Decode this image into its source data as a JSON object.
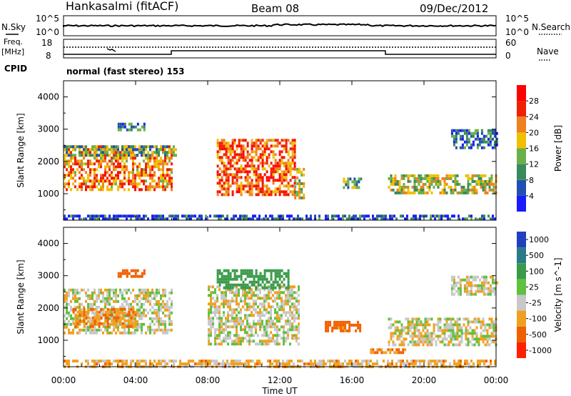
{
  "header": {
    "station": "Hankasalmi (fitACF)",
    "beam": "Beam 08",
    "date": "09/Dec/2012"
  },
  "strip_nsky": {
    "left_label": "N.Sky",
    "right_label": "N.Search",
    "left_ticks": [
      "10^5",
      "10^0"
    ],
    "right_ticks": [
      "10^5",
      "10^0"
    ]
  },
  "strip_freq": {
    "left_label_top": "Freq.",
    "left_label_bottom": "[MHz]",
    "right_label": "Nave",
    "left_ticks": [
      "18",
      "8"
    ],
    "right_ticks": [
      "60",
      "0"
    ]
  },
  "cpid": {
    "label": "CPID",
    "value": "normal (fast stereo) 153"
  },
  "x_axis": {
    "label": "Time UT",
    "tick_labels": [
      "00:00",
      "04:00",
      "08:00",
      "12:00",
      "16:00",
      "20:00",
      "00:00"
    ]
  },
  "chart_data": [
    {
      "type": "heatmap",
      "title": "",
      "xlabel": "Time UT",
      "ylabel": "Slant Range [km]",
      "x_range_hours": [
        0,
        24
      ],
      "ylim": [
        180,
        4500
      ],
      "y_ticks": [
        1000,
        2000,
        3000,
        4000
      ],
      "colorbar": {
        "label": "Power [dB]",
        "ticks": [
          "4",
          "8",
          "12",
          "16",
          "20",
          "24",
          "28"
        ],
        "colors": [
          "#1a1aff",
          "#2050b0",
          "#3a8a5a",
          "#6ab04a",
          "#f0c000",
          "#f08020",
          "#f02000",
          "#ff0000"
        ]
      },
      "regions": [
        {
          "t_start": 0.0,
          "t_end": 6.0,
          "r_min": 1100,
          "r_max": 2500,
          "power_db": 24
        },
        {
          "t_start": 0.0,
          "t_end": 6.2,
          "r_min": 2200,
          "r_max": 2500,
          "power_db": 14
        },
        {
          "t_start": 3.0,
          "t_end": 4.5,
          "r_min": 2950,
          "r_max": 3200,
          "power_db": 10
        },
        {
          "t_start": 8.5,
          "t_end": 12.8,
          "r_min": 1000,
          "r_max": 2700,
          "power_db": 26
        },
        {
          "t_start": 12.8,
          "t_end": 13.3,
          "r_min": 900,
          "r_max": 1800,
          "power_db": 18
        },
        {
          "t_start": 15.5,
          "t_end": 16.5,
          "r_min": 1200,
          "r_max": 1500,
          "power_db": 14
        },
        {
          "t_start": 18.0,
          "t_end": 24.0,
          "r_min": 1000,
          "r_max": 1600,
          "power_db": 18
        },
        {
          "t_start": 21.5,
          "t_end": 24.0,
          "r_min": 2400,
          "r_max": 3000,
          "power_db": 10
        },
        {
          "t_start": 0.0,
          "t_end": 24.0,
          "r_min": 180,
          "r_max": 350,
          "power_db": 8
        }
      ]
    },
    {
      "type": "heatmap",
      "title": "",
      "xlabel": "Time UT",
      "ylabel": "Slant Range [km]",
      "x_range_hours": [
        0,
        24
      ],
      "ylim": [
        180,
        4500
      ],
      "y_ticks": [
        1000,
        2000,
        3000,
        4000
      ],
      "colorbar": {
        "label": "Velocity [m s^-1]",
        "ticks": [
          "1000",
          "500",
          "100",
          "25",
          "-25",
          "-100",
          "-500",
          "-1000"
        ],
        "colors": [
          "#2040c0",
          "#2a7a8a",
          "#3a9a4a",
          "#60c040",
          "#c8c8c8",
          "#f0a020",
          "#f06000",
          "#ff2000"
        ]
      },
      "regions": [
        {
          "t_start": 0.0,
          "t_end": 6.0,
          "r_min": 1200,
          "r_max": 2600,
          "velocity_ms": 0
        },
        {
          "t_start": 0.5,
          "t_end": 4.0,
          "r_min": 1400,
          "r_max": 2000,
          "velocity_ms": -100
        },
        {
          "t_start": 3.0,
          "t_end": 4.5,
          "r_min": 3000,
          "r_max": 3200,
          "velocity_ms": -200
        },
        {
          "t_start": 8.0,
          "t_end": 13.0,
          "r_min": 900,
          "r_max": 2700,
          "velocity_ms": 0
        },
        {
          "t_start": 8.5,
          "t_end": 12.5,
          "r_min": 2600,
          "r_max": 3200,
          "velocity_ms": 300
        },
        {
          "t_start": 14.5,
          "t_end": 16.5,
          "r_min": 1300,
          "r_max": 1600,
          "velocity_ms": -150
        },
        {
          "t_start": 17.0,
          "t_end": 19.0,
          "r_min": 600,
          "r_max": 750,
          "velocity_ms": -100
        },
        {
          "t_start": 18.0,
          "t_end": 24.0,
          "r_min": 900,
          "r_max": 1700,
          "velocity_ms": 0
        },
        {
          "t_start": 21.5,
          "t_end": 24.0,
          "r_min": 2400,
          "r_max": 3000,
          "velocity_ms": 0
        },
        {
          "t_start": 0.0,
          "t_end": 24.0,
          "r_min": 180,
          "r_max": 400,
          "velocity_ms": -50
        }
      ]
    }
  ]
}
